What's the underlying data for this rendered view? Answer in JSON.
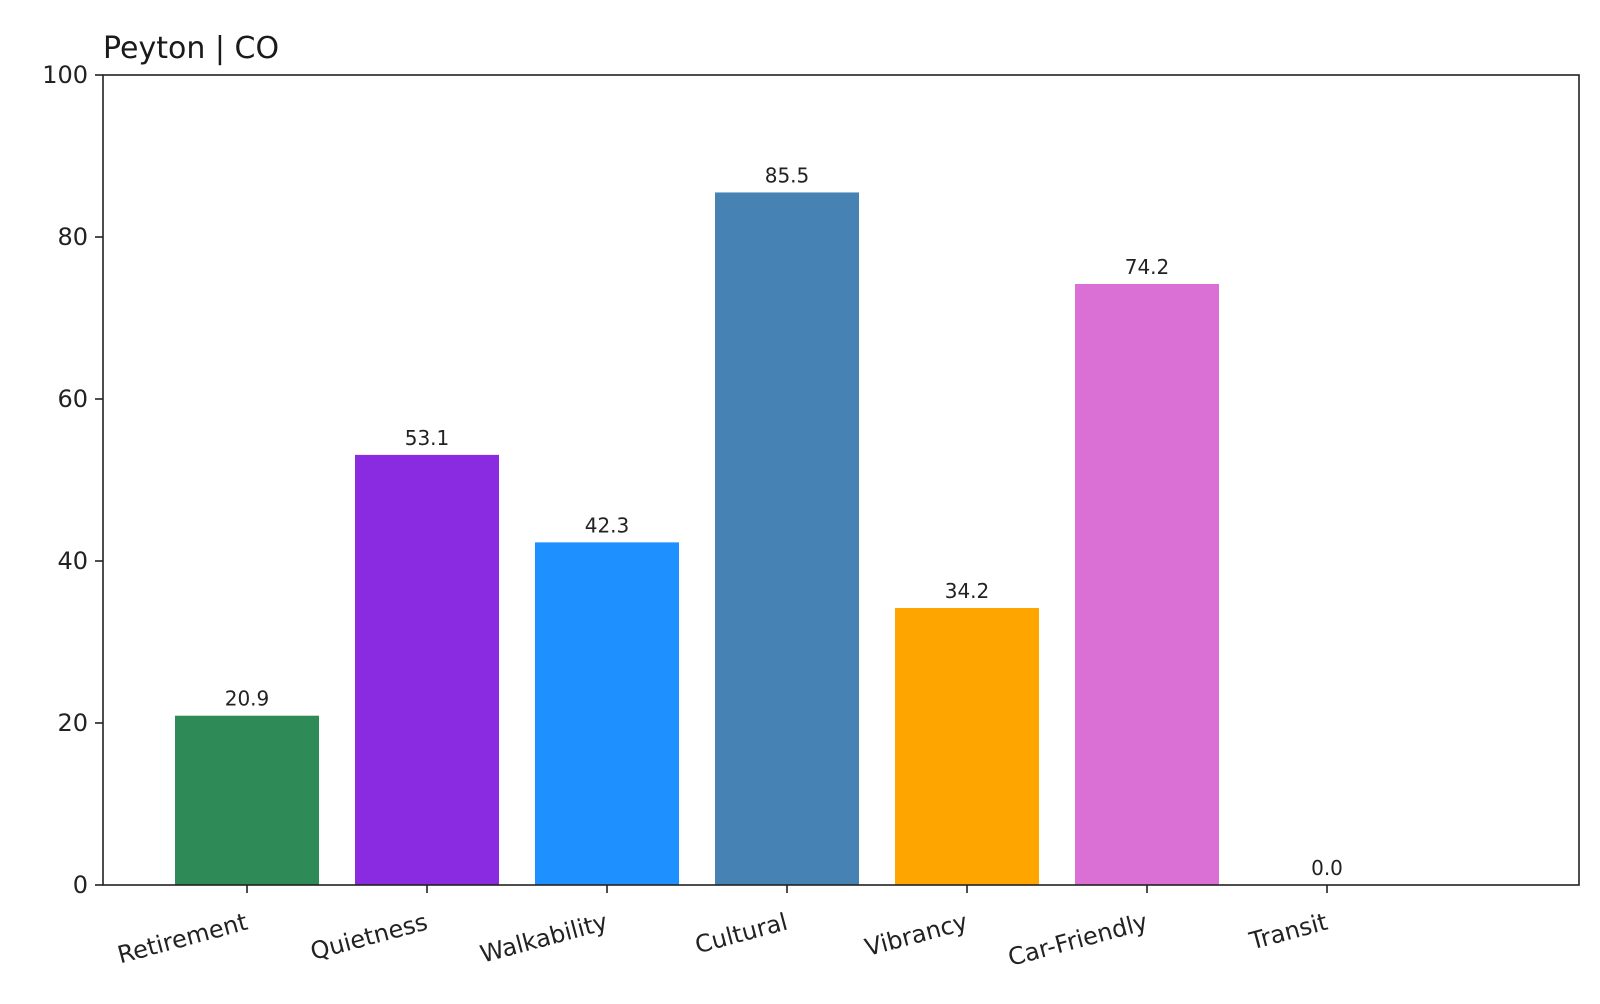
{
  "chart_data": {
    "type": "bar",
    "title": "Peyton | CO",
    "xlabel": "",
    "ylabel": "",
    "categories": [
      "Retirement",
      "Quietness",
      "Walkability",
      "Cultural",
      "Vibrancy",
      "Car-Friendly",
      "Transit"
    ],
    "values": [
      20.9,
      53.1,
      42.3,
      85.5,
      34.2,
      74.2,
      0.0
    ],
    "value_labels": [
      "20.9",
      "53.1",
      "42.3",
      "85.5",
      "34.2",
      "74.2",
      "0.0"
    ],
    "colors": [
      "#2e8b57",
      "#8a2be2",
      "#1e90ff",
      "#4682b4",
      "#ffa500",
      "#da70d6",
      "#9e9e9e"
    ],
    "ylim": [
      0,
      100
    ],
    "yticks": [
      0,
      20,
      40,
      60,
      80,
      100
    ],
    "ytick_labels": [
      "0",
      "20",
      "40",
      "60",
      "80",
      "100"
    ],
    "grid": false,
    "legend": "none"
  }
}
